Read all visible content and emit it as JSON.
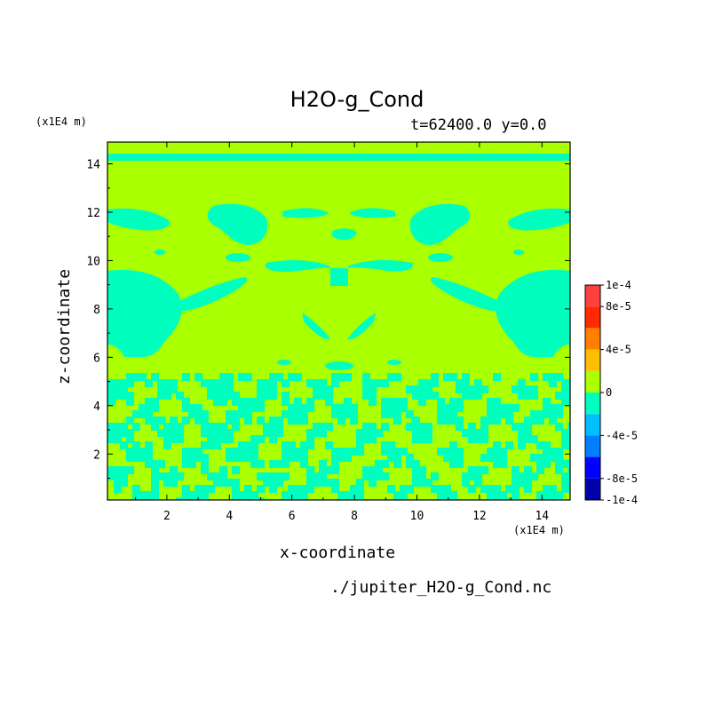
{
  "chart_data": {
    "type": "heatmap",
    "title": "H2O-g_Cond",
    "subtitle": "t=62400.0 y=0.0",
    "xlabel": "x-coordinate",
    "ylabel": "z-coordinate",
    "x_unit": "(x1E4 m)",
    "y_unit": "(x1E4 m)",
    "xlim": [
      0.1,
      14.9
    ],
    "ylim": [
      0.1,
      14.9
    ],
    "x_ticks": [
      "2",
      "4",
      "6",
      "8",
      "10",
      "12",
      "14"
    ],
    "x_tick_values": [
      2,
      4,
      6,
      8,
      10,
      12,
      14
    ],
    "y_ticks": [
      "2",
      "4",
      "6",
      "8",
      "10",
      "12",
      "14"
    ],
    "y_tick_values": [
      2,
      4,
      6,
      8,
      10,
      12,
      14
    ],
    "colorbar_range": [
      -0.0001,
      0.0001
    ],
    "colorbar_labels": [
      "1e-4",
      "8e-5",
      "4e-5",
      "0",
      "-4e-5",
      "-8e-5",
      "-1e-4"
    ],
    "colorbar_label_values": [
      0.0001,
      8e-05,
      4e-05,
      0,
      -4e-05,
      -8e-05,
      -0.0001
    ],
    "colorbar_levels": [
      {
        "from": 8e-05,
        "to": 0.0001,
        "color": "#ff4040"
      },
      {
        "from": 6e-05,
        "to": 8e-05,
        "color": "#ff2a00"
      },
      {
        "from": 4e-05,
        "to": 6e-05,
        "color": "#ff7f00"
      },
      {
        "from": 2e-05,
        "to": 4e-05,
        "color": "#ffbf00"
      },
      {
        "from": 0.0,
        "to": 2e-05,
        "color": "#aaff00"
      },
      {
        "from": -2e-05,
        "to": 0.0,
        "color": "#00ffbf"
      },
      {
        "from": -4e-05,
        "to": -2e-05,
        "color": "#00bfff"
      },
      {
        "from": -6e-05,
        "to": -4e-05,
        "color": "#007fff"
      },
      {
        "from": -8e-05,
        "to": -6e-05,
        "color": "#0000ff"
      },
      {
        "from": -0.0001,
        "to": -8e-05,
        "color": "#0000aa"
      }
    ],
    "dominant_level_color": "#aaff00",
    "negative_level_color": "#00ffbf"
  },
  "source_file": "./jupiter_H2O-g_Cond.nc"
}
